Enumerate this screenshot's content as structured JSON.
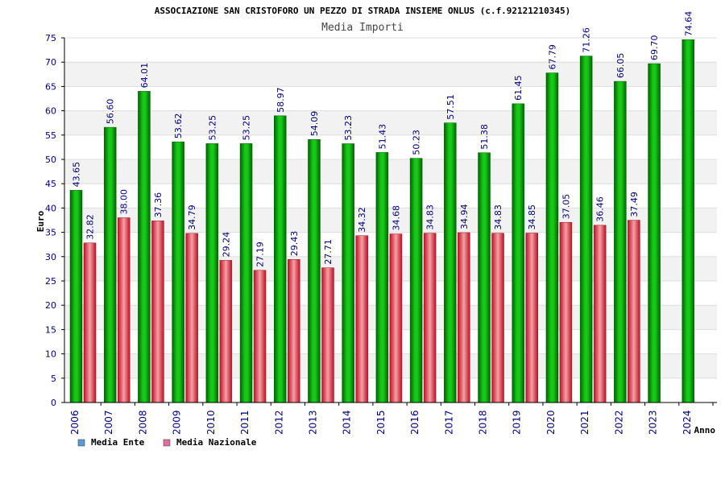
{
  "chart_data": {
    "type": "bar",
    "title": "ASSOCIAZIONE SAN CRISTOFORO UN PEZZO DI STRADA INSIEME ONLUS (c.f.92121210345)",
    "subtitle": "Media Importi",
    "xlabel": "Anno",
    "ylabel": "Euro",
    "ylim": [
      0,
      75
    ],
    "ytick_step": 5,
    "grid": true,
    "legend_position": "bottom-left",
    "categories": [
      "2006",
      "2007",
      "2008",
      "2009",
      "2010",
      "2011",
      "2012",
      "2013",
      "2014",
      "2015",
      "2016",
      "2017",
      "2018",
      "2019",
      "2020",
      "2021",
      "2022",
      "2023",
      "2024"
    ],
    "series": [
      {
        "name": "Media Ente",
        "legend_color": "#5b9bd5",
        "color": "#00a000",
        "values": [
          43.65,
          56.6,
          64.01,
          53.62,
          53.25,
          53.25,
          58.97,
          54.09,
          53.23,
          51.43,
          50.23,
          57.51,
          51.38,
          61.45,
          67.79,
          71.26,
          66.05,
          69.7,
          74.64
        ],
        "labels": [
          "43.65",
          "56.60",
          "64.01",
          "53.62",
          "53.25",
          "53.25",
          "58.97",
          "54.09",
          "53.23",
          "51.43",
          "50.23",
          "57.51",
          "51.38",
          "61.45",
          "67.79",
          "71.26",
          "66.05",
          "69.70",
          "74.64"
        ]
      },
      {
        "name": "Media Nazionale",
        "legend_color": "#e070a0",
        "color": "#e02030",
        "values": [
          32.82,
          38.0,
          37.36,
          34.79,
          29.24,
          27.19,
          29.43,
          27.71,
          34.32,
          34.68,
          34.83,
          34.94,
          34.83,
          34.85,
          37.05,
          36.46,
          37.49,
          null,
          null
        ],
        "labels": [
          "32.82",
          "38.00",
          "37.36",
          "34.79",
          "29.24",
          "27.19",
          "29.43",
          "27.71",
          "34.32",
          "34.68",
          "34.83",
          "34.94",
          "34.83",
          "34.85",
          "37.05",
          "36.46",
          "37.49",
          null,
          null
        ]
      }
    ]
  }
}
